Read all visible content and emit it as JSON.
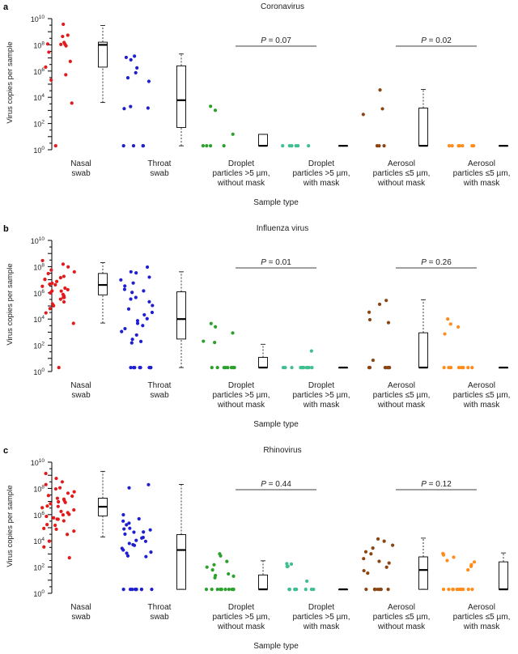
{
  "chart_data": [
    {
      "panel_letter": "a",
      "type": "scatter",
      "title": "Coronavirus",
      "xlabel": "Sample type",
      "ylabel": "Virus copies per sample",
      "yscale": "log",
      "ylim": [
        1,
        10000000000
      ],
      "yticks": [
        {
          "value": 1,
          "base": "10",
          "exp": "0"
        },
        {
          "value": 100,
          "base": "10",
          "exp": "2"
        },
        {
          "value": 10000,
          "base": "10",
          "exp": "4"
        },
        {
          "value": 1000000,
          "base": "10",
          "exp": "6"
        },
        {
          "value": 100000000,
          "base": "10",
          "exp": "8"
        },
        {
          "value": 10000000000,
          "base": "10",
          "exp": "10"
        }
      ],
      "categories": [
        [
          "Nasal",
          "swab"
        ],
        [
          "Throat",
          "swab"
        ],
        [
          "Droplet",
          "particles >5 µm,",
          "without mask"
        ],
        [
          "Droplet",
          "particles >5 µm,",
          "with mask"
        ],
        [
          "Aerosol",
          "particles ≤5 µm,",
          "without mask"
        ],
        [
          "Aerosol",
          "particles ≤5 µm,",
          "with mask"
        ]
      ],
      "comparisons": [
        {
          "between": [
            2,
            3
          ],
          "label": "P = 0.07",
          "p_value": 0.07
        },
        {
          "between": [
            4,
            5
          ],
          "label": "P = 0.02",
          "p_value": 0.02
        }
      ],
      "series": [
        {
          "color": "#e31a1c",
          "points": [
            3500000000.0,
            500000000.0,
            160000000.0,
            130000000.0,
            120000000.0,
            80000000.0,
            500000000.0,
            100000000.0,
            30000000.0,
            6000000.0,
            2000000.0,
            500000.0,
            200000.0,
            4000,
            2
          ]
        },
        {
          "color": "#1f1fd0",
          "points": [
            15000000.0,
            10000000.0,
            7000000.0,
            2000000.0,
            800000.0,
            300000.0,
            180000.0,
            2000.0,
            1600.0,
            1400.0,
            2,
            2,
            2,
            2
          ]
        },
        {
          "color": "#2ca02c",
          "points": [
            2000,
            1000,
            15,
            2,
            2,
            2,
            2
          ]
        },
        {
          "color": "#3fbf8f",
          "points": [
            2,
            2,
            2,
            2,
            2,
            2,
            2
          ]
        },
        {
          "color": "#8b4513",
          "points": [
            40000,
            1400,
            500,
            2,
            2,
            2
          ]
        },
        {
          "color": "#ff8c1a",
          "points": [
            2,
            2,
            2,
            2,
            2,
            2,
            2
          ]
        }
      ],
      "boxes": [
        {
          "q1": 2000000.0,
          "median": 100000000.0,
          "q3": 160000000.0,
          "whisker_low": 4000,
          "whisker_high": 3000000000.0
        },
        {
          "q1": 50,
          "median": 6000,
          "q3": 2500000.0,
          "whisker_low": 2,
          "whisker_high": 20000000.0
        },
        {
          "q1": 2,
          "median": 2,
          "q3": 15,
          "whisker_low": 2,
          "whisker_high": 15
        },
        {
          "q1": 2,
          "median": 2,
          "q3": 2,
          "whisker_low": 2,
          "whisker_high": 2
        },
        {
          "q1": 2,
          "median": 2,
          "q3": 1500,
          "whisker_low": 2,
          "whisker_high": 40000
        },
        {
          "q1": 2,
          "median": 2,
          "q3": 2,
          "whisker_low": 2,
          "whisker_high": 2
        }
      ]
    },
    {
      "panel_letter": "b",
      "type": "scatter",
      "title": "Influenza virus",
      "xlabel": "Sample type",
      "ylabel": "Virus copies per sample",
      "yscale": "log",
      "ylim": [
        1,
        10000000000
      ],
      "yticks": [
        {
          "value": 1,
          "base": "10",
          "exp": "0"
        },
        {
          "value": 100,
          "base": "10",
          "exp": "2"
        },
        {
          "value": 10000,
          "base": "10",
          "exp": "4"
        },
        {
          "value": 1000000,
          "base": "10",
          "exp": "6"
        },
        {
          "value": 100000000,
          "base": "10",
          "exp": "8"
        },
        {
          "value": 10000000000,
          "base": "10",
          "exp": "10"
        }
      ],
      "categories": [
        [
          "Nasal",
          "swab"
        ],
        [
          "Throat",
          "swab"
        ],
        [
          "Droplet",
          "particles >5 µm,",
          "without mask"
        ],
        [
          "Droplet",
          "particles >5 µm,",
          "with mask"
        ],
        [
          "Aerosol",
          "particles ≤5 µm,",
          "without mask"
        ],
        [
          "Aerosol",
          "particles ≤5 µm,",
          "with mask"
        ]
      ],
      "comparisons": [
        {
          "between": [
            2,
            3
          ],
          "label": "P = 0.01",
          "p_value": 0.01
        },
        {
          "between": [
            4,
            5
          ],
          "label": "P = 0.26",
          "p_value": 0.26
        }
      ],
      "series": [
        {
          "color": "#e31a1c",
          "points": [
            300000000.0,
            150000000.0,
            100000000.0,
            60000000.0,
            40000000.0,
            30000000.0,
            20000000.0,
            15000000.0,
            12000000.0,
            10000000.0,
            8000000.0,
            6000000.0,
            5000000.0,
            4000000.0,
            3000000.0,
            2500000.0,
            2000000.0,
            1500000.0,
            1200000.0,
            1000000.0,
            800000.0,
            600000.0,
            500000.0,
            400000.0,
            300000.0,
            200000.0,
            150000.0,
            100000.0,
            60000.0,
            30000.0,
            5000,
            2
          ]
        },
        {
          "color": "#1f1fd0",
          "points": [
            100000000.0,
            40000000.0,
            30000000.0,
            15000000.0,
            10000000.0,
            5000000.0,
            3000000.0,
            2000000.0,
            1500000.0,
            1000000.0,
            500000.0,
            300000.0,
            200000.0,
            100000.0,
            60000.0,
            30000.0,
            20000.0,
            10000.0,
            8000.0,
            5000.0,
            3000.0,
            2000.0,
            1000.0,
            600,
            300,
            200,
            150,
            2,
            2,
            2,
            2,
            2,
            2,
            2,
            2
          ]
        },
        {
          "color": "#2ca02c",
          "points": [
            4000,
            2500,
            1000,
            200,
            150,
            2,
            2,
            2,
            2,
            2,
            2,
            2,
            2
          ]
        },
        {
          "color": "#3fbf8f",
          "points": [
            35,
            2,
            2,
            2,
            2,
            2,
            2,
            2,
            2,
            2,
            2,
            2
          ]
        },
        {
          "color": "#8b4513",
          "points": [
            300000.0,
            150000.0,
            30000.0,
            10000.0,
            5000.0,
            8,
            2,
            2,
            2,
            2,
            2,
            2,
            2,
            2
          ]
        },
        {
          "color": "#ff8c1a",
          "points": [
            9000,
            4000,
            2500,
            700,
            2,
            2,
            2,
            2,
            2,
            2,
            2,
            2,
            2
          ]
        }
      ],
      "boxes": [
        {
          "q1": 700000.0,
          "median": 4000000.0,
          "q3": 30000000.0,
          "whisker_low": 5000,
          "whisker_high": 200000000.0
        },
        {
          "q1": 300,
          "median": 10000.0,
          "q3": 1200000.0,
          "whisker_low": 2,
          "whisker_high": 40000000.0
        },
        {
          "q1": 2,
          "median": 2,
          "q3": 12,
          "whisker_low": 2,
          "whisker_high": 120
        },
        {
          "q1": 2,
          "median": 2,
          "q3": 2,
          "whisker_low": 2,
          "whisker_high": 2
        },
        {
          "q1": 2,
          "median": 2,
          "q3": 900,
          "whisker_low": 2,
          "whisker_high": 300000.0
        },
        {
          "q1": 2,
          "median": 2,
          "q3": 2,
          "whisker_low": 2,
          "whisker_high": 2
        }
      ]
    },
    {
      "panel_letter": "c",
      "type": "scatter",
      "title": "Rhinovirus",
      "xlabel": "Sample type",
      "ylabel": "Virus copies per sample",
      "yscale": "log",
      "ylim": [
        1,
        10000000000
      ],
      "yticks": [
        {
          "value": 1,
          "base": "10",
          "exp": "0"
        },
        {
          "value": 100,
          "base": "10",
          "exp": "2"
        },
        {
          "value": 10000,
          "base": "10",
          "exp": "4"
        },
        {
          "value": 1000000,
          "base": "10",
          "exp": "6"
        },
        {
          "value": 100000000,
          "base": "10",
          "exp": "8"
        },
        {
          "value": 10000000000,
          "base": "10",
          "exp": "10"
        }
      ],
      "categories": [
        [
          "Nasal",
          "swab"
        ],
        [
          "Throat",
          "swab"
        ],
        [
          "Droplet",
          "particles >5 µm,",
          "without mask"
        ],
        [
          "Droplet",
          "particles >5 µm,",
          "with mask"
        ],
        [
          "Aerosol",
          "particles ≤5 µm,",
          "without mask"
        ],
        [
          "Aerosol",
          "particles ≤5 µm,",
          "with mask"
        ]
      ],
      "comparisons": [
        {
          "between": [
            2,
            3
          ],
          "label": "P = 0.44",
          "p_value": 0.44
        },
        {
          "between": [
            4,
            5
          ],
          "label": "P = 0.12",
          "p_value": 0.12
        }
      ],
      "series": [
        {
          "color": "#e31a1c",
          "points": [
            1500000000.0,
            600000000.0,
            300000000.0,
            200000000.0,
            120000000.0,
            80000000.0,
            60000000.0,
            40000000.0,
            30000000.0,
            25000000.0,
            20000000.0,
            15000000.0,
            12000000.0,
            10000000.0,
            8000000.0,
            6000000.0,
            5000000.0,
            4000000.0,
            3000000.0,
            2500000.0,
            2000000.0,
            1500000.0,
            1200000.0,
            1000000.0,
            800000.0,
            600000.0,
            500000.0,
            400000.0,
            300000.0,
            200000.0,
            150000.0,
            100000.0,
            80000.0,
            60000.0,
            30000.0,
            10000.0,
            3000,
            500
          ]
        },
        {
          "color": "#1f1fd0",
          "points": [
            200000000.0,
            100000000.0,
            1000000.0,
            500000.0,
            300000.0,
            200000.0,
            150000.0,
            100000.0,
            80000.0,
            60000.0,
            50000.0,
            40000.0,
            30000.0,
            20000.0,
            15000.0,
            10000.0,
            8000.0,
            6000.0,
            5000.0,
            4000.0,
            3000.0,
            2000.0,
            1500.0,
            1000.0,
            800,
            600,
            2,
            2,
            2,
            2,
            2,
            2,
            2,
            2,
            2
          ]
        },
        {
          "color": "#2ca02c",
          "points": [
            900,
            800,
            300,
            150,
            100,
            60,
            30,
            25,
            20,
            15,
            2,
            2,
            2,
            2,
            2,
            2,
            2,
            2,
            2,
            2
          ]
        },
        {
          "color": "#3fbf8f",
          "points": [
            200,
            150,
            120,
            100,
            8,
            2,
            2,
            2,
            2,
            2,
            2,
            2,
            2,
            2
          ]
        },
        {
          "color": "#8b4513",
          "points": [
            15000,
            10000,
            5000,
            3000,
            1500,
            1000,
            500,
            300,
            200,
            100,
            60,
            30,
            2,
            2,
            2,
            2,
            2,
            2,
            2,
            2
          ]
        },
        {
          "color": "#ff8c1a",
          "points": [
            1200,
            1000,
            800,
            500,
            300,
            250,
            150,
            100,
            60,
            2,
            2,
            2,
            2,
            2,
            2,
            2,
            2,
            2,
            2,
            2,
            2,
            2
          ]
        }
      ],
      "boxes": [
        {
          "q1": 800000.0,
          "median": 4000000.0,
          "q3": 18000000.0,
          "whisker_low": 20000.0,
          "whisker_high": 2000000000.0
        },
        {
          "q1": 2,
          "median": 2000,
          "q3": 30000.0,
          "whisker_low": 2,
          "whisker_high": 200000000.0
        },
        {
          "q1": 2,
          "median": 2,
          "q3": 25,
          "whisker_low": 2,
          "whisker_high": 300
        },
        {
          "q1": 2,
          "median": 2,
          "q3": 2,
          "whisker_low": 2,
          "whisker_high": 2
        },
        {
          "q1": 2,
          "median": 60,
          "q3": 600,
          "whisker_low": 2,
          "whisker_high": 16000
        },
        {
          "q1": 2,
          "median": 2,
          "q3": 250,
          "whisker_low": 2,
          "whisker_high": 1200
        }
      ]
    }
  ]
}
